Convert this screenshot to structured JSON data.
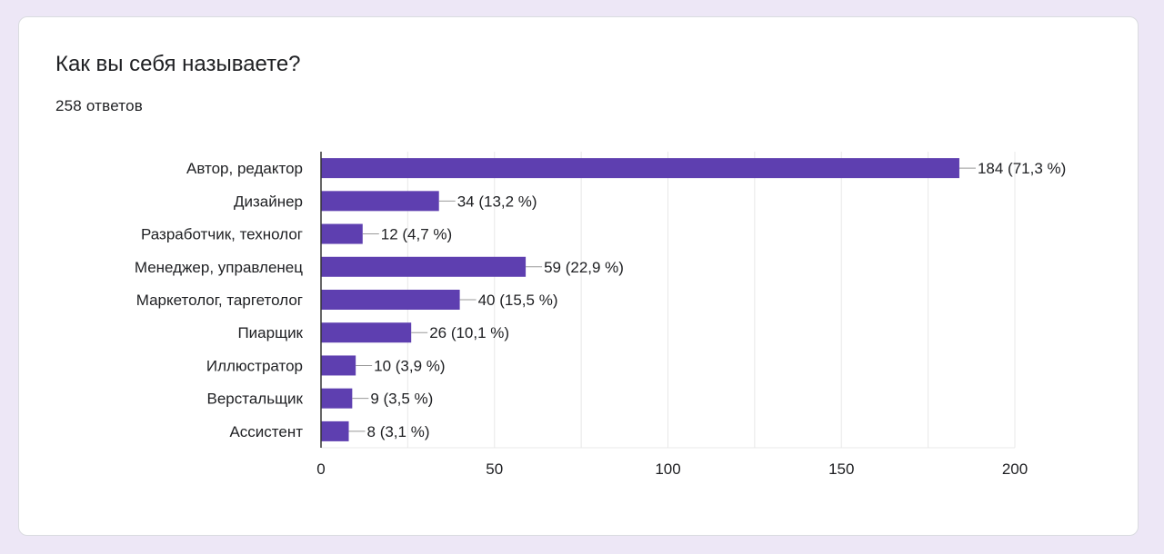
{
  "question": {
    "title": "Как вы себя называете?",
    "responses": "258 ответов"
  },
  "colors": {
    "bar": "#5e3fb0",
    "grid": "#e8e8e8",
    "axis": "#333333",
    "text": "#202124"
  },
  "chart_data": {
    "type": "bar",
    "orientation": "horizontal",
    "categories": [
      "Автор, редактор",
      "Дизайнер",
      "Разработчик, технолог",
      "Менеджер, управленец",
      "Маркетолог, таргетолог",
      "Пиарщик",
      "Иллюстратор",
      "Верстальщик",
      "Ассистент"
    ],
    "values": [
      184,
      34,
      12,
      59,
      40,
      26,
      10,
      9,
      8
    ],
    "value_labels": [
      "184 (71,3 %)",
      "34 (13,2 %)",
      "12 (4,7 %)",
      "59 (22,9 %)",
      "40 (15,5 %)",
      "26 (10,1 %)",
      "10 (3,9 %)",
      "9 (3,5 %)",
      "8 (3,1 %)"
    ],
    "xlim": [
      0,
      200
    ],
    "xticks": [
      0,
      50,
      100,
      150,
      200
    ],
    "grid": true
  }
}
